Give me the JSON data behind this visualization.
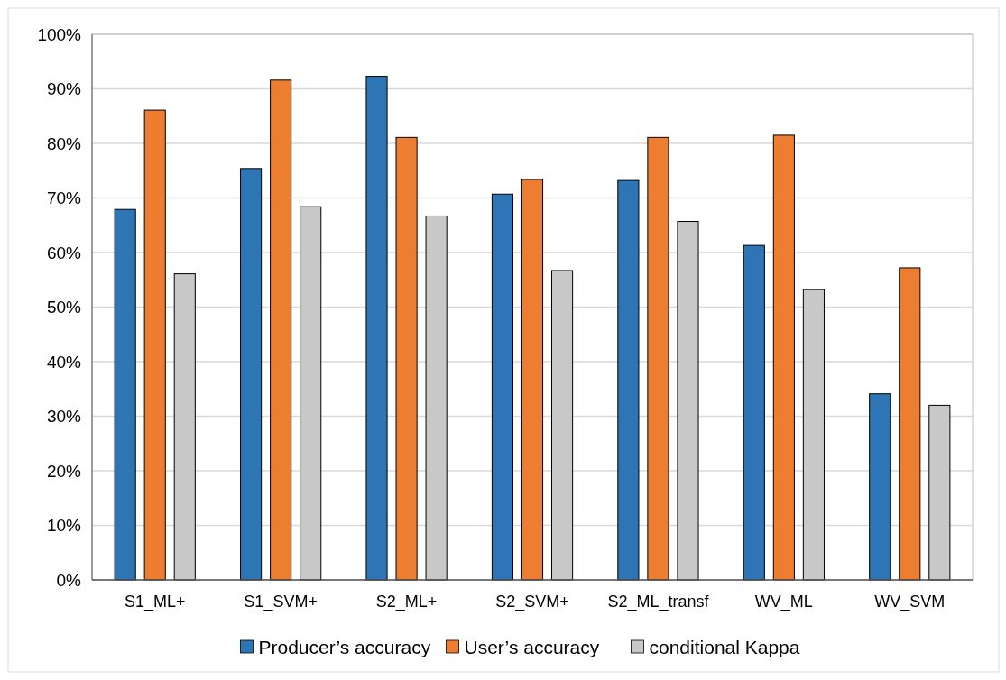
{
  "chart_data": {
    "type": "bar",
    "categories": [
      "S1_ML+",
      "S1_SVM+",
      "S2_ML+",
      "S2_SVM+",
      "S2_ML_transf",
      "WV_ML",
      "WV_SVM"
    ],
    "series": [
      {
        "name": "Producer’s accuracy",
        "color": "#2e75b6",
        "values": [
          67.9,
          75.4,
          92.3,
          70.7,
          73.2,
          61.3,
          34.1
        ]
      },
      {
        "name": "User’s accuracy",
        "color": "#ed7d31",
        "values": [
          86.1,
          91.6,
          81.1,
          73.4,
          81.1,
          81.5,
          57.2
        ]
      },
      {
        "name": "conditional Kappa",
        "color": "#c8c8c8",
        "values": [
          56.1,
          68.4,
          66.7,
          56.7,
          65.7,
          53.2,
          32.0
        ]
      }
    ],
    "ylim": [
      0,
      100
    ],
    "yticks": [
      {
        "value": 0,
        "label": "0%"
      },
      {
        "value": 10,
        "label": "10%"
      },
      {
        "value": 20,
        "label": "20%"
      },
      {
        "value": 30,
        "label": "30%"
      },
      {
        "value": 40,
        "label": "40%"
      },
      {
        "value": 50,
        "label": "50%"
      },
      {
        "value": 60,
        "label": "60%"
      },
      {
        "value": 70,
        "label": "70%"
      },
      {
        "value": 80,
        "label": "80%"
      },
      {
        "value": 90,
        "label": "90%"
      },
      {
        "value": 100,
        "label": "100%"
      }
    ],
    "grid": "y",
    "legend": "bottom"
  }
}
